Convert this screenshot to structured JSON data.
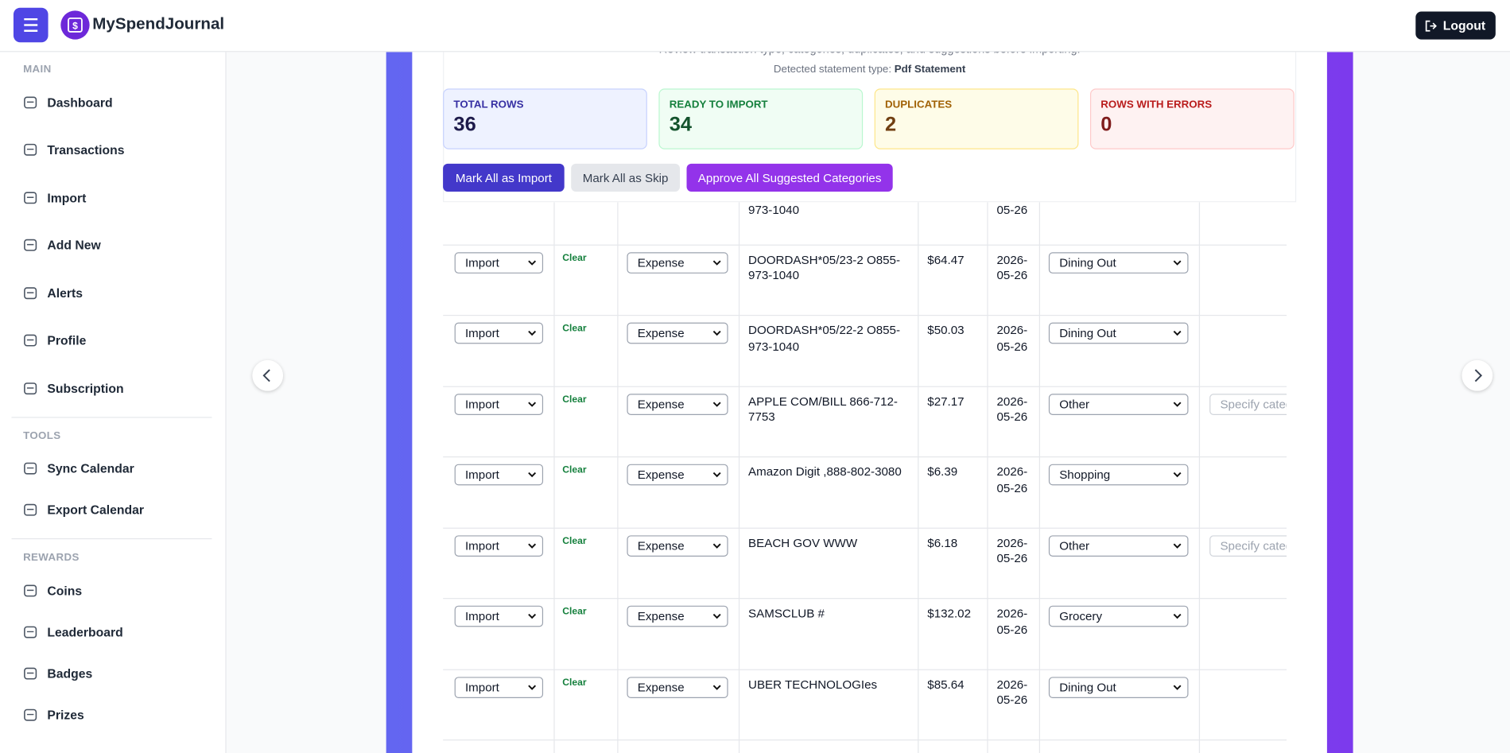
{
  "header": {
    "brand": "MySpendJournal",
    "logout": "Logout"
  },
  "sidebar": {
    "sections": [
      {
        "title": "MAIN",
        "items": [
          "Dashboard",
          "Transactions",
          "Import",
          "Add New",
          "Alerts",
          "Profile",
          "Subscription"
        ]
      },
      {
        "title": "TOOLS",
        "items": [
          "Sync Calendar",
          "Export Calendar"
        ]
      },
      {
        "title": "REWARDS",
        "items": [
          "Coins",
          "Leaderboard",
          "Badges",
          "Prizes"
        ]
      }
    ]
  },
  "page": {
    "subtitle": "Review transaction type, categories, duplicates, and suggestions before importing.",
    "detected_label": "Detected statement type:",
    "detected_value": "Pdf Statement"
  },
  "stats": [
    {
      "label": "TOTAL ROWS",
      "value": 36
    },
    {
      "label": "READY TO IMPORT",
      "value": 34
    },
    {
      "label": "DUPLICATES",
      "value": 2
    },
    {
      "label": "ROWS WITH ERRORS",
      "value": 0
    }
  ],
  "actions": [
    "Mark All as Import",
    "Mark All as Skip",
    "Approve All Suggested Categories"
  ],
  "table": {
    "partial_row": {
      "description": "973-1040",
      "date": "05-26"
    },
    "rows": [
      {
        "action": "Import",
        "clear": "Clear",
        "type": "Expense",
        "description": "DOORDASH*05/23-2 O855-973-1040",
        "amount": "$64.47",
        "date": "2026-05-26",
        "category": "Dining Out"
      },
      {
        "action": "Import",
        "clear": "Clear",
        "type": "Expense",
        "description": "DOORDASH*05/22-2 O855-973-1040",
        "amount": "$50.03",
        "date": "2026-05-26",
        "category": "Dining Out"
      },
      {
        "action": "Import",
        "clear": "Clear",
        "type": "Expense",
        "description": "APPLE COM/BILL 866-712-7753",
        "amount": "$27.17",
        "date": "2026-05-26",
        "category": "Other",
        "custom": "Specify category"
      },
      {
        "action": "Import",
        "clear": "Clear",
        "type": "Expense",
        "description": "Amazon Digit ,888-802-3080",
        "amount": "$6.39",
        "date": "2026-05-26",
        "category": "Shopping"
      },
      {
        "action": "Import",
        "clear": "Clear",
        "type": "Expense",
        "description": "BEACH GOV WWW",
        "amount": "$6.18",
        "date": "2026-05-26",
        "category": "Other",
        "custom": "Specify category"
      },
      {
        "action": "Import",
        "clear": "Clear",
        "type": "Expense",
        "description": "SAMSCLUB #",
        "amount": "$132.02",
        "date": "2026-05-26",
        "category": "Grocery"
      },
      {
        "action": "Import",
        "clear": "Clear",
        "type": "Expense",
        "description": "UBER TECHNOLOGIes",
        "amount": "$85.64",
        "date": "2026-05-26",
        "category": "Dining Out"
      }
    ]
  }
}
